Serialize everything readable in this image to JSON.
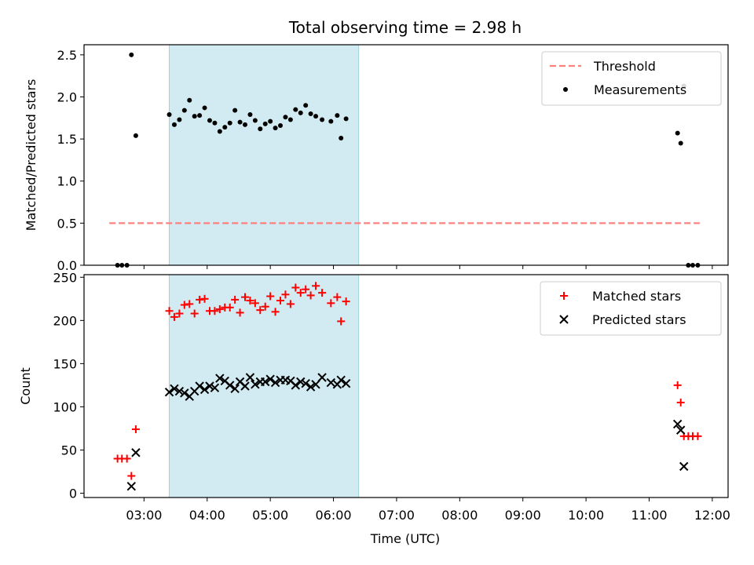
{
  "chart_data": {
    "title": "Total observing time = 2.98 h",
    "xlabel": "Time (UTC)",
    "x_unit": "hours (UTC)",
    "xlim": [
      2.05,
      12.25
    ],
    "xticks": [
      3,
      4,
      5,
      6,
      7,
      8,
      9,
      10,
      11,
      12
    ],
    "xtick_labels": [
      "03:00",
      "04:00",
      "05:00",
      "06:00",
      "07:00",
      "08:00",
      "09:00",
      "10:00",
      "11:00",
      "12:00"
    ],
    "shaded_span": {
      "x_start": 3.4,
      "x_end": 6.4,
      "color": "#add8e6"
    },
    "panels": [
      {
        "type": "scatter",
        "ylabel": "Matched/Predicted stars",
        "ylim": [
          0,
          2.62
        ],
        "yticks": [
          0,
          0.5,
          1.0,
          1.5,
          2.0,
          2.5
        ],
        "ytick_labels": [
          "0.0",
          "0.5",
          "1.0",
          "1.5",
          "2.0",
          "2.5"
        ],
        "legend_position": "top-right",
        "threshold": {
          "name": "Threshold",
          "y": 0.5,
          "x_start": 2.45,
          "x_end": 11.8,
          "color": "#ff7f7f"
        },
        "series": [
          {
            "name": "Measurements",
            "marker": "dot",
            "color": "#000000",
            "points": [
              [
                2.58,
                0
              ],
              [
                2.65,
                0
              ],
              [
                2.73,
                0
              ],
              [
                2.8,
                2.5
              ],
              [
                2.87,
                1.54
              ],
              [
                3.4,
                1.79
              ],
              [
                3.48,
                1.67
              ],
              [
                3.56,
                1.73
              ],
              [
                3.64,
                1.84
              ],
              [
                3.72,
                1.96
              ],
              [
                3.8,
                1.77
              ],
              [
                3.88,
                1.78
              ],
              [
                3.96,
                1.87
              ],
              [
                4.04,
                1.72
              ],
              [
                4.12,
                1.69
              ],
              [
                4.2,
                1.59
              ],
              [
                4.28,
                1.64
              ],
              [
                4.36,
                1.69
              ],
              [
                4.44,
                1.84
              ],
              [
                4.52,
                1.7
              ],
              [
                4.6,
                1.67
              ],
              [
                4.68,
                1.79
              ],
              [
                4.76,
                1.72
              ],
              [
                4.84,
                1.62
              ],
              [
                4.92,
                1.68
              ],
              [
                5.0,
                1.71
              ],
              [
                5.08,
                1.63
              ],
              [
                5.16,
                1.66
              ],
              [
                5.24,
                1.76
              ],
              [
                5.32,
                1.73
              ],
              [
                5.4,
                1.85
              ],
              [
                5.48,
                1.81
              ],
              [
                5.56,
                1.9
              ],
              [
                5.64,
                1.8
              ],
              [
                5.72,
                1.77
              ],
              [
                5.82,
                1.73
              ],
              [
                5.96,
                1.71
              ],
              [
                6.06,
                1.78
              ],
              [
                6.12,
                1.51
              ],
              [
                6.2,
                1.74
              ],
              [
                11.45,
                1.57
              ],
              [
                11.5,
                1.45
              ],
              [
                11.55,
                2.13
              ],
              [
                11.62,
                0
              ],
              [
                11.69,
                0
              ],
              [
                11.77,
                0
              ]
            ]
          }
        ]
      },
      {
        "type": "scatter",
        "ylabel": "Count",
        "ylim": [
          -5,
          253
        ],
        "yticks": [
          0,
          50,
          100,
          150,
          200,
          250
        ],
        "ytick_labels": [
          "0",
          "50",
          "100",
          "150",
          "200",
          "250"
        ],
        "legend_position": "top-right",
        "series": [
          {
            "name": "Matched stars",
            "marker": "plus",
            "color": "#ff0000",
            "points": [
              [
                2.58,
                40
              ],
              [
                2.65,
                40
              ],
              [
                2.73,
                40
              ],
              [
                2.8,
                20
              ],
              [
                2.87,
                74
              ],
              [
                3.4,
                211
              ],
              [
                3.48,
                204
              ],
              [
                3.56,
                208
              ],
              [
                3.64,
                218
              ],
              [
                3.72,
                219
              ],
              [
                3.8,
                208
              ],
              [
                3.88,
                224
              ],
              [
                3.96,
                225
              ],
              [
                4.04,
                211
              ],
              [
                4.12,
                211
              ],
              [
                4.2,
                213
              ],
              [
                4.28,
                215
              ],
              [
                4.36,
                215
              ],
              [
                4.44,
                224
              ],
              [
                4.52,
                209
              ],
              [
                4.6,
                227
              ],
              [
                4.68,
                223
              ],
              [
                4.76,
                220
              ],
              [
                4.84,
                212
              ],
              [
                4.92,
                216
              ],
              [
                5.0,
                228
              ],
              [
                5.08,
                210
              ],
              [
                5.16,
                223
              ],
              [
                5.24,
                230
              ],
              [
                5.32,
                219
              ],
              [
                5.4,
                238
              ],
              [
                5.48,
                232
              ],
              [
                5.56,
                236
              ],
              [
                5.64,
                229
              ],
              [
                5.72,
                240
              ],
              [
                5.82,
                232
              ],
              [
                5.96,
                220
              ],
              [
                6.06,
                227
              ],
              [
                6.12,
                199
              ],
              [
                6.2,
                222
              ],
              [
                11.45,
                125
              ],
              [
                11.5,
                105
              ],
              [
                11.55,
                66
              ],
              [
                11.62,
                66
              ],
              [
                11.69,
                66
              ],
              [
                11.77,
                66
              ]
            ]
          },
          {
            "name": "Predicted stars",
            "marker": "x",
            "color": "#000000",
            "points": [
              [
                2.8,
                8
              ],
              [
                2.87,
                47
              ],
              [
                3.4,
                117
              ],
              [
                3.48,
                121
              ],
              [
                3.56,
                118
              ],
              [
                3.64,
                116
              ],
              [
                3.72,
                112
              ],
              [
                3.8,
                118
              ],
              [
                3.88,
                124
              ],
              [
                3.96,
                120
              ],
              [
                4.04,
                124
              ],
              [
                4.12,
                122
              ],
              [
                4.2,
                133
              ],
              [
                4.28,
                130
              ],
              [
                4.36,
                125
              ],
              [
                4.44,
                121
              ],
              [
                4.52,
                129
              ],
              [
                4.6,
                124
              ],
              [
                4.68,
                134
              ],
              [
                4.76,
                126
              ],
              [
                4.84,
                129
              ],
              [
                4.92,
                129
              ],
              [
                5.0,
                132
              ],
              [
                5.08,
                128
              ],
              [
                5.16,
                131
              ],
              [
                5.24,
                131
              ],
              [
                5.32,
                130
              ],
              [
                5.4,
                125
              ],
              [
                5.48,
                129
              ],
              [
                5.56,
                127
              ],
              [
                5.64,
                123
              ],
              [
                5.72,
                126
              ],
              [
                5.82,
                134
              ],
              [
                5.96,
                128
              ],
              [
                6.06,
                126
              ],
              [
                6.12,
                131
              ],
              [
                6.2,
                127
              ],
              [
                11.45,
                80
              ],
              [
                11.5,
                73
              ],
              [
                11.55,
                31
              ]
            ]
          }
        ]
      }
    ]
  }
}
